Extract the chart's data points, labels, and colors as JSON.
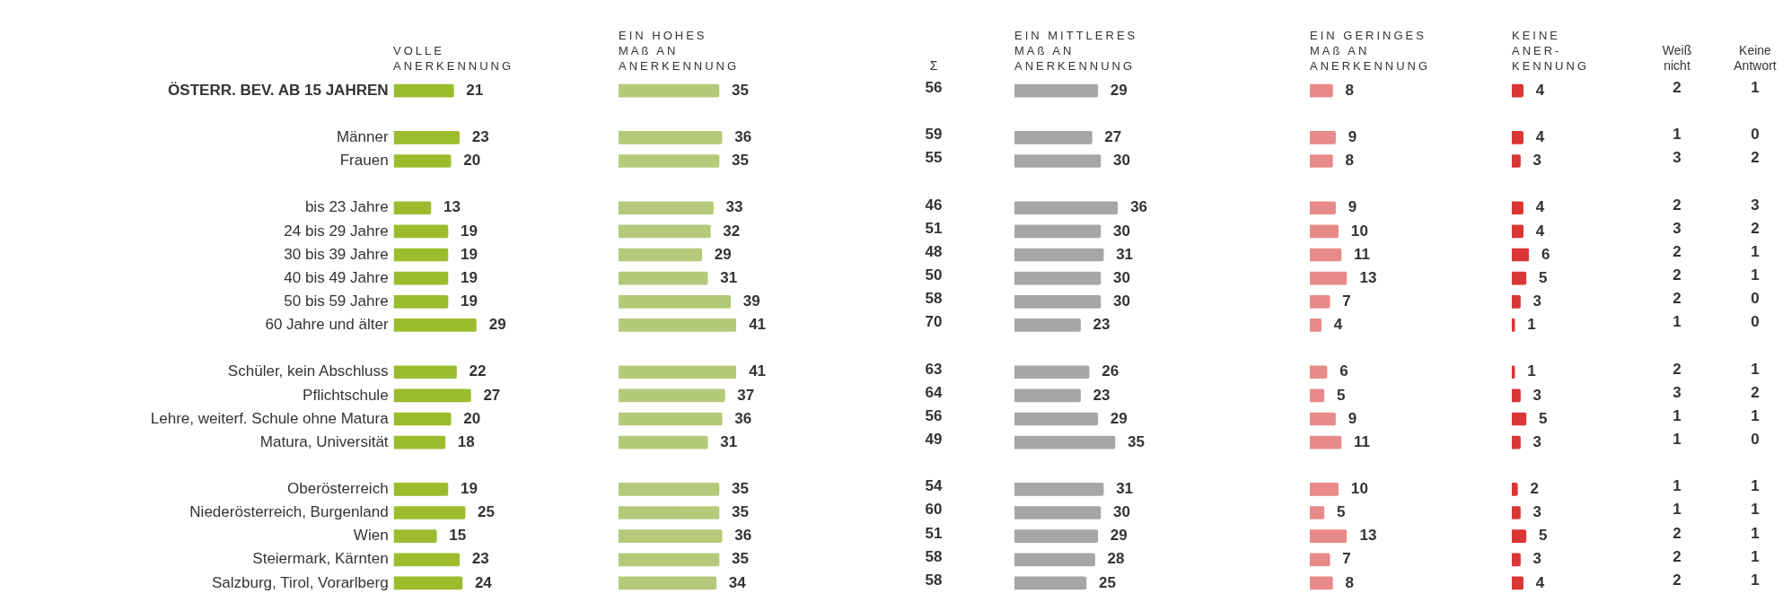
{
  "chart_data": [
    {
      "type": "bar",
      "orientation": "horizontal",
      "title": "VOLLE\nANERKENNUNG",
      "categories": [
        "ÖSTERR. BEV. AB 15 JAHREN",
        null,
        "Männer",
        "Frauen",
        null,
        "bis 23 Jahre",
        "24 bis 29 Jahre",
        "30 bis 39 Jahre",
        "40 bis 49 Jahre",
        "50 bis 59 Jahre",
        "60 Jahre und älter",
        null,
        "Schüler, kein Abschluss",
        "Pflichtschule",
        "Lehre, weiterf. Schule ohne Matura",
        "Matura, Universität",
        null,
        "Oberösterreich",
        "Niederösterreich, Burgenland",
        "Wien",
        "Steiermark, Kärnten",
        "Salzburg, Tirol, Vorarlberg"
      ],
      "values": [
        21,
        null,
        23,
        20,
        null,
        13,
        19,
        19,
        19,
        19,
        29,
        null,
        22,
        27,
        20,
        18,
        null,
        19,
        25,
        15,
        23,
        24
      ],
      "color": "#9cbc2e",
      "data_labels": true,
      "tick_labels": "y"
    },
    {
      "type": "bar",
      "orientation": "horizontal",
      "title": "EIN HOHES\nMAß AN\nANERKENNUNG",
      "categories": [
        null,
        null,
        null,
        null,
        null,
        null,
        null,
        null,
        null,
        null,
        null,
        null,
        null,
        null,
        null,
        null,
        null,
        null,
        null,
        null,
        null,
        null
      ],
      "values": [
        35,
        null,
        36,
        35,
        null,
        33,
        32,
        29,
        31,
        39,
        41,
        null,
        41,
        37,
        36,
        31,
        null,
        35,
        35,
        36,
        35,
        34
      ],
      "color": "#b5c97a",
      "data_labels": true
    },
    {
      "type": "other",
      "title": "Σ",
      "categories": [
        null,
        null,
        null,
        null,
        null,
        null,
        null,
        null,
        null,
        null,
        null,
        null,
        null,
        null,
        null,
        null,
        null,
        null,
        null,
        null,
        null,
        null
      ],
      "values": [
        56,
        null,
        59,
        55,
        null,
        46,
        51,
        48,
        50,
        58,
        70,
        null,
        63,
        64,
        56,
        49,
        null,
        54,
        60,
        51,
        58,
        58
      ],
      "data_labels": true
    },
    {
      "type": "bar",
      "orientation": "horizontal",
      "title": "EIN MITTLERES\nMAß AN\nANERKENNUNG",
      "categories": [
        null,
        null,
        null,
        null,
        null,
        null,
        null,
        null,
        null,
        null,
        null,
        null,
        null,
        null,
        null,
        null,
        null,
        null,
        null,
        null,
        null,
        null
      ],
      "values": [
        29,
        null,
        27,
        30,
        null,
        36,
        30,
        31,
        30,
        30,
        23,
        null,
        26,
        23,
        29,
        35,
        null,
        31,
        30,
        29,
        28,
        25
      ],
      "color": "#a6a6a6",
      "data_labels": true
    },
    {
      "type": "bar",
      "orientation": "horizontal",
      "title": "EIN GERINGES\nMAß AN\nANERKENNUNG",
      "categories": [
        null,
        null,
        null,
        null,
        null,
        null,
        null,
        null,
        null,
        null,
        null,
        null,
        null,
        null,
        null,
        null,
        null,
        null,
        null,
        null,
        null,
        null
      ],
      "values": [
        8,
        null,
        9,
        8,
        null,
        9,
        10,
        11,
        13,
        7,
        4,
        null,
        6,
        5,
        9,
        11,
        null,
        10,
        5,
        13,
        7,
        8
      ],
      "color": "#e88a8a",
      "data_labels": true
    },
    {
      "type": "bar",
      "orientation": "horizontal",
      "title": "KEINE\nANER-\nKENNUNG",
      "categories": [
        null,
        null,
        null,
        null,
        null,
        null,
        null,
        null,
        null,
        null,
        null,
        null,
        null,
        null,
        null,
        null,
        null,
        null,
        null,
        null,
        null,
        null
      ],
      "values": [
        4,
        null,
        4,
        3,
        null,
        4,
        4,
        6,
        5,
        3,
        1,
        null,
        1,
        3,
        5,
        3,
        null,
        2,
        3,
        5,
        3,
        4
      ],
      "color": "#d93636",
      "data_labels": true
    },
    {
      "type": "other",
      "title": "Weiß\nnicht",
      "categories": [
        null,
        null,
        null,
        null,
        null,
        null,
        null,
        null,
        null,
        null,
        null,
        null,
        null,
        null,
        null,
        null,
        null,
        null,
        null,
        null,
        null,
        null
      ],
      "values": [
        2,
        null,
        1,
        3,
        null,
        2,
        3,
        2,
        2,
        2,
        1,
        null,
        2,
        3,
        1,
        1,
        null,
        1,
        1,
        2,
        2,
        2
      ],
      "data_labels": true
    },
    {
      "type": "other",
      "title": "Keine\nAntwort",
      "categories": [
        null,
        null,
        null,
        null,
        null,
        null,
        null,
        null,
        null,
        null,
        null,
        null,
        null,
        null,
        null,
        null,
        null,
        null,
        null,
        null,
        null,
        null
      ],
      "values": [
        1,
        null,
        0,
        2,
        null,
        3,
        2,
        1,
        1,
        0,
        0,
        null,
        1,
        2,
        1,
        0,
        null,
        1,
        1,
        1,
        1,
        1
      ],
      "data_labels": true
    }
  ]
}
